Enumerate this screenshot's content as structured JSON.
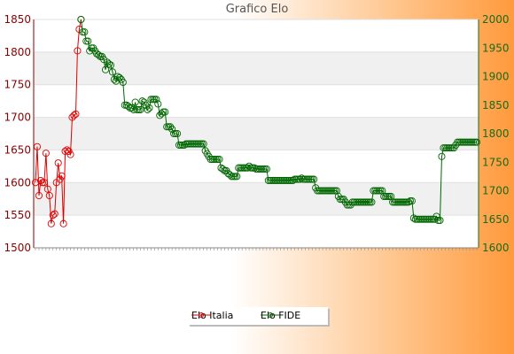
{
  "chart_data": {
    "type": "line",
    "title": "Grafico Elo",
    "left_axis": {
      "ylim": [
        1500,
        1850
      ],
      "ticks": [
        1500,
        1550,
        1600,
        1650,
        1700,
        1750,
        1800,
        1850
      ]
    },
    "right_axis": {
      "ylim": [
        1600,
        2000
      ],
      "ticks": [
        1600,
        1650,
        1700,
        1750,
        1800,
        1850,
        1900,
        1950,
        2000
      ]
    },
    "legend_position": "bottom-center",
    "grid": "horizontal bands",
    "x_count": 140,
    "series": [
      {
        "name": "Elo Italia",
        "axis": "left",
        "color": "#dd0000",
        "points": [
          [
            0,
            1600
          ],
          [
            1,
            1655
          ],
          [
            2,
            1580
          ],
          [
            3,
            1603
          ],
          [
            4,
            1600
          ],
          [
            5,
            1600
          ],
          [
            6,
            1645
          ],
          [
            7,
            1590
          ],
          [
            8,
            1580
          ],
          [
            9,
            1537
          ],
          [
            10,
            1550
          ],
          [
            11,
            1552
          ],
          [
            12,
            1600
          ],
          [
            13,
            1630
          ],
          [
            14,
            1605
          ],
          [
            15,
            1610
          ],
          [
            16,
            1537
          ],
          [
            17,
            1648
          ],
          [
            18,
            1650
          ],
          [
            19,
            1648
          ],
          [
            20,
            1643
          ],
          [
            21,
            1700
          ],
          [
            22,
            1703
          ],
          [
            23,
            1705
          ],
          [
            24,
            1802
          ],
          [
            25,
            1835
          ],
          [
            26,
            1850
          ]
        ]
      },
      {
        "name": "Elo FIDE",
        "axis": "right",
        "color": "#006600",
        "points": [
          [
            26,
            2000
          ],
          [
            27,
            1978
          ],
          [
            28,
            1978
          ],
          [
            29,
            1962
          ],
          [
            30,
            1962
          ],
          [
            31,
            1945
          ],
          [
            32,
            1950
          ],
          [
            33,
            1950
          ],
          [
            34,
            1945
          ],
          [
            35,
            1940
          ],
          [
            36,
            1938
          ],
          [
            37,
            1935
          ],
          [
            38,
            1935
          ],
          [
            39,
            1930
          ],
          [
            40,
            1912
          ],
          [
            41,
            1925
          ],
          [
            42,
            1922
          ],
          [
            43,
            1920
          ],
          [
            44,
            1908
          ],
          [
            45,
            1895
          ],
          [
            46,
            1892
          ],
          [
            47,
            1900
          ],
          [
            48,
            1898
          ],
          [
            49,
            1895
          ],
          [
            50,
            1890
          ],
          [
            51,
            1850
          ],
          [
            52,
            1850
          ],
          [
            53,
            1848
          ],
          [
            54,
            1845
          ],
          [
            55,
            1845
          ],
          [
            56,
            1842
          ],
          [
            57,
            1855
          ],
          [
            58,
            1842
          ],
          [
            59,
            1842
          ],
          [
            60,
            1842
          ],
          [
            61,
            1857
          ],
          [
            62,
            1855
          ],
          [
            63,
            1850
          ],
          [
            64,
            1842
          ],
          [
            65,
            1845
          ],
          [
            66,
            1860
          ],
          [
            67,
            1860
          ],
          [
            68,
            1860
          ],
          [
            69,
            1860
          ],
          [
            70,
            1852
          ],
          [
            71,
            1832
          ],
          [
            72,
            1835
          ],
          [
            73,
            1838
          ],
          [
            74,
            1838
          ],
          [
            75,
            1812
          ],
          [
            76,
            1812
          ],
          [
            77,
            1812
          ],
          [
            78,
            1808
          ],
          [
            79,
            1800
          ],
          [
            80,
            1800
          ],
          [
            81,
            1800
          ],
          [
            82,
            1780
          ],
          [
            83,
            1780
          ],
          [
            84,
            1780
          ],
          [
            85,
            1780
          ],
          [
            86,
            1782
          ],
          [
            87,
            1782
          ],
          [
            88,
            1782
          ],
          [
            89,
            1782
          ],
          [
            90,
            1782
          ],
          [
            91,
            1782
          ],
          [
            92,
            1782
          ],
          [
            93,
            1782
          ],
          [
            94,
            1782
          ],
          [
            95,
            1782
          ],
          [
            96,
            1782
          ],
          [
            97,
            1770
          ],
          [
            98,
            1765
          ],
          [
            99,
            1760
          ],
          [
            100,
            1755
          ],
          [
            101,
            1755
          ],
          [
            102,
            1755
          ],
          [
            103,
            1755
          ],
          [
            104,
            1755
          ],
          [
            105,
            1755
          ],
          [
            106,
            1740
          ],
          [
            107,
            1738
          ],
          [
            108,
            1735
          ],
          [
            109,
            1735
          ],
          [
            110,
            1730
          ],
          [
            111,
            1728
          ],
          [
            112,
            1725
          ],
          [
            113,
            1725
          ],
          [
            114,
            1725
          ],
          [
            115,
            1725
          ],
          [
            116,
            1740
          ],
          [
            117,
            1740
          ],
          [
            118,
            1740
          ],
          [
            119,
            1740
          ],
          [
            120,
            1740
          ],
          [
            121,
            1740
          ],
          [
            122,
            1743
          ],
          [
            123,
            1740
          ],
          [
            124,
            1740
          ],
          [
            125,
            1740
          ],
          [
            126,
            1738
          ],
          [
            127,
            1738
          ],
          [
            128,
            1738
          ],
          [
            129,
            1738
          ],
          [
            130,
            1738
          ],
          [
            131,
            1738
          ],
          [
            132,
            1738
          ],
          [
            133,
            1718
          ],
          [
            134,
            1718
          ],
          [
            135,
            1718
          ],
          [
            136,
            1718
          ],
          [
            137,
            1718
          ],
          [
            138,
            1718
          ],
          [
            139,
            1718
          ],
          [
            140,
            1718
          ],
          [
            141,
            1718
          ],
          [
            142,
            1718
          ],
          [
            143,
            1718
          ],
          [
            144,
            1718
          ],
          [
            145,
            1718
          ],
          [
            146,
            1718
          ],
          [
            147,
            1718
          ],
          [
            148,
            1720
          ],
          [
            149,
            1720
          ],
          [
            150,
            1720
          ],
          [
            151,
            1720
          ],
          [
            152,
            1722
          ],
          [
            153,
            1720
          ],
          [
            154,
            1720
          ],
          [
            155,
            1720
          ],
          [
            156,
            1720
          ],
          [
            157,
            1720
          ],
          [
            158,
            1720
          ],
          [
            159,
            1720
          ],
          [
            160,
            1705
          ],
          [
            161,
            1700
          ],
          [
            162,
            1700
          ],
          [
            163,
            1700
          ],
          [
            164,
            1700
          ],
          [
            165,
            1700
          ],
          [
            166,
            1700
          ],
          [
            167,
            1700
          ],
          [
            168,
            1700
          ],
          [
            169,
            1700
          ],
          [
            170,
            1700
          ],
          [
            171,
            1700
          ],
          [
            172,
            1700
          ],
          [
            173,
            1690
          ],
          [
            174,
            1685
          ],
          [
            175,
            1685
          ],
          [
            176,
            1685
          ],
          [
            177,
            1680
          ],
          [
            178,
            1675
          ],
          [
            179,
            1675
          ],
          [
            180,
            1675
          ],
          [
            181,
            1680
          ],
          [
            182,
            1680
          ],
          [
            183,
            1680
          ],
          [
            184,
            1680
          ],
          [
            185,
            1680
          ],
          [
            186,
            1680
          ],
          [
            187,
            1680
          ],
          [
            188,
            1680
          ],
          [
            189,
            1680
          ],
          [
            190,
            1680
          ],
          [
            191,
            1680
          ],
          [
            192,
            1680
          ],
          [
            193,
            1700
          ],
          [
            194,
            1700
          ],
          [
            195,
            1700
          ],
          [
            196,
            1700
          ],
          [
            197,
            1700
          ],
          [
            198,
            1700
          ],
          [
            199,
            1690
          ],
          [
            200,
            1690
          ],
          [
            201,
            1690
          ],
          [
            202,
            1690
          ],
          [
            203,
            1690
          ],
          [
            204,
            1680
          ],
          [
            205,
            1680
          ],
          [
            206,
            1680
          ],
          [
            207,
            1680
          ],
          [
            208,
            1680
          ],
          [
            209,
            1680
          ],
          [
            210,
            1680
          ],
          [
            211,
            1680
          ],
          [
            212,
            1680
          ],
          [
            213,
            1680
          ],
          [
            214,
            1682
          ],
          [
            215,
            1682
          ],
          [
            216,
            1652
          ],
          [
            217,
            1650
          ],
          [
            218,
            1650
          ],
          [
            219,
            1650
          ],
          [
            220,
            1650
          ],
          [
            221,
            1650
          ],
          [
            222,
            1650
          ],
          [
            223,
            1650
          ],
          [
            224,
            1650
          ],
          [
            225,
            1650
          ],
          [
            226,
            1650
          ],
          [
            227,
            1650
          ],
          [
            228,
            1650
          ],
          [
            229,
            1655
          ],
          [
            230,
            1648
          ],
          [
            231,
            1648
          ],
          [
            232,
            1760
          ],
          [
            233,
            1775
          ],
          [
            234,
            1775
          ],
          [
            235,
            1775
          ],
          [
            236,
            1775
          ],
          [
            237,
            1775
          ],
          [
            238,
            1775
          ],
          [
            239,
            1775
          ],
          [
            240,
            1780
          ],
          [
            241,
            1785
          ],
          [
            242,
            1785
          ],
          [
            243,
            1785
          ],
          [
            244,
            1785
          ],
          [
            245,
            1785
          ],
          [
            246,
            1785
          ],
          [
            247,
            1785
          ],
          [
            248,
            1785
          ],
          [
            249,
            1785
          ],
          [
            250,
            1785
          ],
          [
            251,
            1785
          ],
          [
            252,
            1785
          ]
        ]
      }
    ]
  }
}
